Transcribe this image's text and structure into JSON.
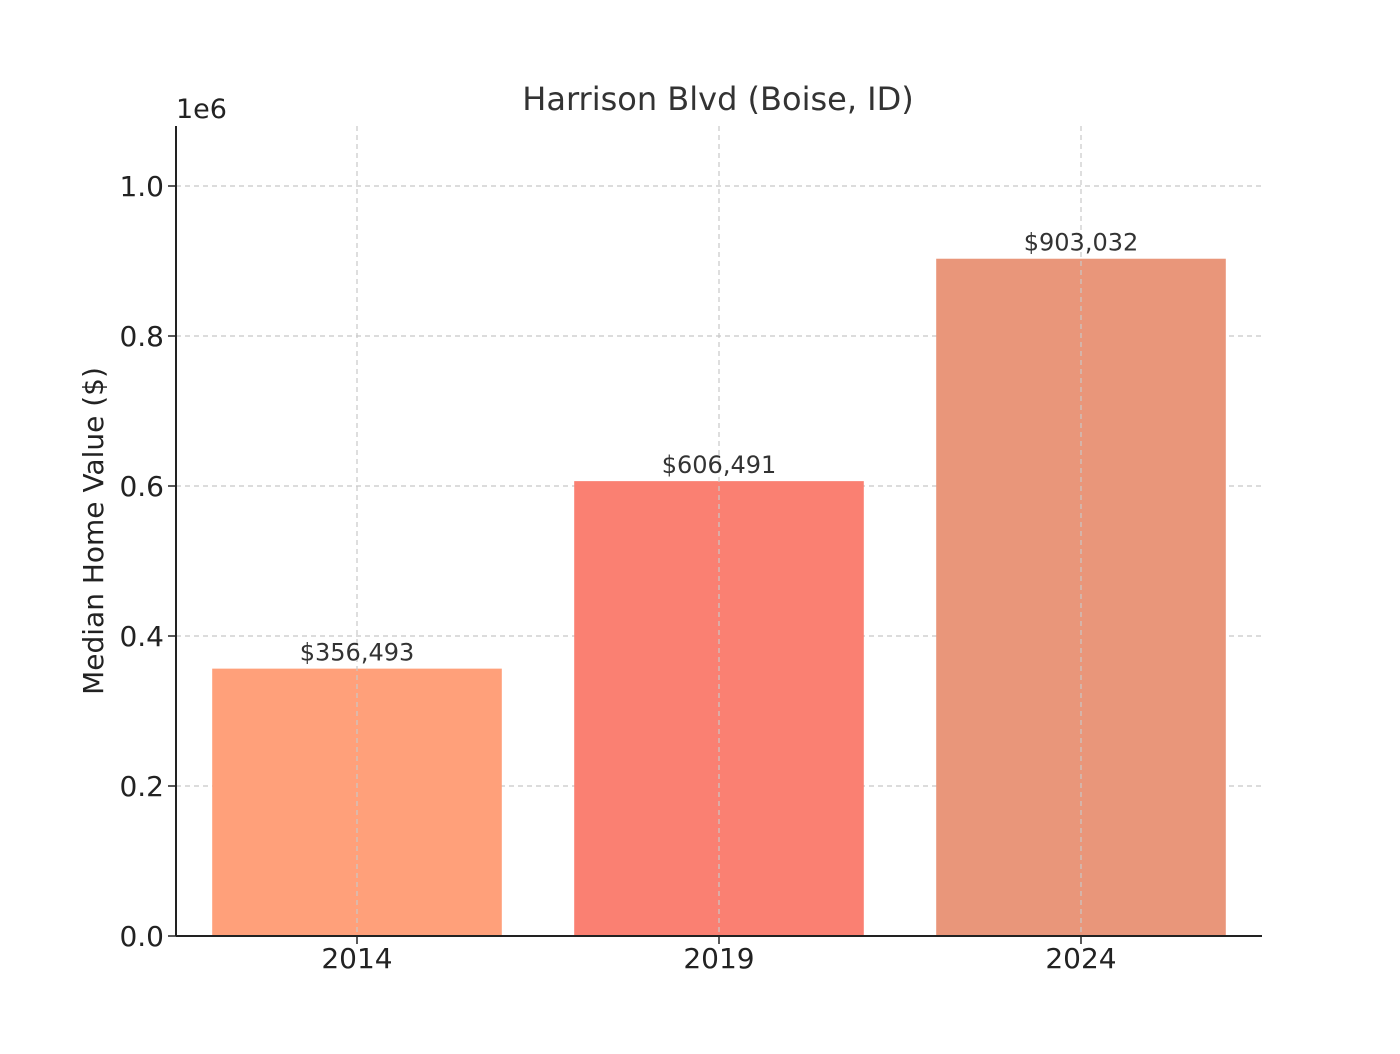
{
  "chart_data": {
    "type": "bar",
    "title": "Harrison Blvd (Boise, ID)",
    "xlabel": "",
    "ylabel": "Median Home Value ($)",
    "y_offset_label": "1e6",
    "categories": [
      "2014",
      "2019",
      "2024"
    ],
    "values": [
      356493,
      606491,
      903032
    ],
    "data_labels": [
      "$356,493",
      "$606,491",
      "$903,032"
    ],
    "bar_colors": [
      "#FFA07A",
      "#FA8072",
      "#E9967A"
    ],
    "ylim": [
      0,
      1080000
    ],
    "yticks": [
      0,
      200000,
      400000,
      600000,
      800000,
      1000000
    ],
    "ytick_labels": [
      "0.0",
      "0.2",
      "0.4",
      "0.6",
      "0.8",
      "1.0"
    ],
    "grid": true
  }
}
